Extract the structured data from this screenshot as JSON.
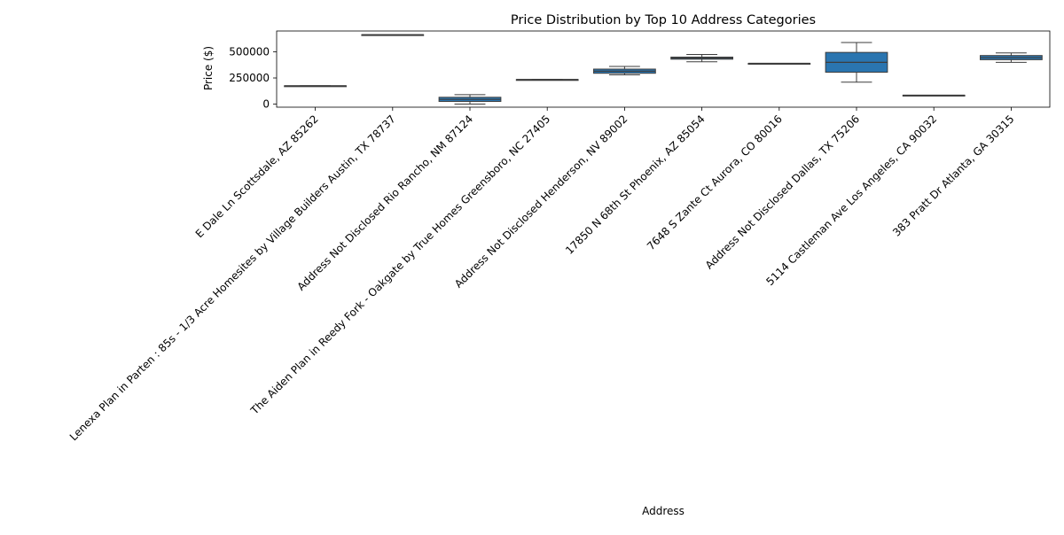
{
  "chart_data": {
    "type": "box",
    "title": "Price Distribution by Top 10 Address Categories",
    "xlabel": "Address",
    "ylabel": "Price ($)",
    "ylim": [
      -30000,
      700000
    ],
    "yticks": [
      0,
      250000,
      500000
    ],
    "ytick_labels": [
      "0",
      "250000",
      "500000"
    ],
    "box_color": "#2a75b0",
    "line_color": "#3d3d3d",
    "categories": [
      "E Dale Ln Scottsdale, AZ 85262",
      "Lenexa Plan in Parten : 85s - 1/3 Acre Homesites by Village Builders Austin, TX 78737",
      "Address Not Disclosed Rio Rancho, NM 87124",
      "The Aiden Plan in Reedy Fork - Oakgate by True Homes Greensboro, NC 27405",
      "Address Not Disclosed Henderson, NV 89002",
      "17850 N 68th St Phoenix, AZ 85054",
      "7648 S Zante Ct Aurora, CO 80016",
      "Address Not Disclosed Dallas, TX 75206",
      "5114 Castleman Ave Los Angeles, CA 90032",
      "383 Pratt Dr Atlanta, GA 30315"
    ],
    "boxes": [
      {
        "min": 175000,
        "q1": 175000,
        "median": 175000,
        "q3": 175000,
        "max": 175000
      },
      {
        "min": 665000,
        "q1": 665000,
        "median": 665000,
        "q3": 665000,
        "max": 665000
      },
      {
        "min": 0,
        "q1": 25000,
        "median": 45000,
        "q3": 65000,
        "max": 90000
      },
      {
        "min": 235000,
        "q1": 235000,
        "median": 235000,
        "q3": 235000,
        "max": 235000
      },
      {
        "min": 280000,
        "q1": 295000,
        "median": 315000,
        "q3": 335000,
        "max": 360000
      },
      {
        "min": 405000,
        "q1": 430000,
        "median": 440000,
        "q3": 450000,
        "max": 475000
      },
      {
        "min": 390000,
        "q1": 390000,
        "median": 390000,
        "q3": 390000,
        "max": 390000
      },
      {
        "min": 210000,
        "q1": 305000,
        "median": 400000,
        "q3": 495000,
        "max": 590000
      },
      {
        "min": 85000,
        "q1": 85000,
        "median": 85000,
        "q3": 85000,
        "max": 85000
      },
      {
        "min": 400000,
        "q1": 425000,
        "median": 445000,
        "q3": 465000,
        "max": 490000
      }
    ]
  }
}
